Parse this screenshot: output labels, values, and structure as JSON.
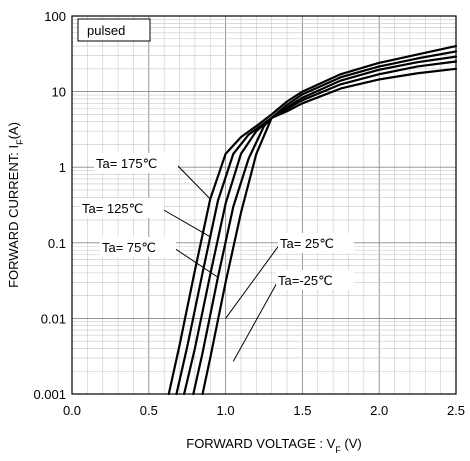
{
  "chart_data": {
    "type": "line",
    "xlabel_main": "FORWARD VOLTAGE : V",
    "xlabel_sub": "F",
    "xlabel_unit": " (V)",
    "ylabel_main": "FORWARD CURRENT: I",
    "ylabel_sub": "F",
    "ylabel_unit": "(A)",
    "note": "pulsed",
    "xlim": [
      0.0,
      2.5
    ],
    "ylim": [
      0.001,
      100
    ],
    "yscale": "log",
    "grid": "on",
    "x_tick_labels": [
      "0.0",
      "0.5",
      "1.0",
      "1.5",
      "2.0",
      "2.5"
    ],
    "x_ticks": [
      0,
      0.5,
      1.0,
      1.5,
      2.0,
      2.5
    ],
    "y_tick_labels": [
      "0.001",
      "0.01",
      "0.1",
      "1",
      "10",
      "100"
    ],
    "y_ticks": [
      0.001,
      0.01,
      0.1,
      1,
      10,
      100
    ],
    "series": [
      {
        "name": "Ta= 175℃",
        "x": [
          0.63,
          0.7,
          0.8,
          0.9,
          1.0,
          1.1,
          1.2,
          1.3,
          1.4,
          1.5,
          1.75,
          2.0,
          2.25,
          2.5
        ],
        "y": [
          0.001,
          0.0044,
          0.043,
          0.38,
          1.5,
          2.5,
          3.5,
          5.0,
          7.4,
          10.0,
          17.0,
          24.0,
          31.0,
          40.0
        ]
      },
      {
        "name": "Ta= 125℃",
        "x": [
          0.68,
          0.75,
          0.85,
          0.95,
          1.05,
          1.15,
          1.3,
          1.4,
          1.5,
          1.75,
          2.0,
          2.25,
          2.5
        ],
        "y": [
          0.001,
          0.0042,
          0.04,
          0.36,
          1.5,
          2.7,
          4.5,
          6.7,
          9.2,
          15.5,
          21.5,
          27.5,
          34.0
        ]
      },
      {
        "name": "Ta= 75℃",
        "x": [
          0.73,
          0.8,
          0.9,
          1.0,
          1.1,
          1.2,
          1.3,
          1.4,
          1.5,
          1.75,
          2.0,
          2.25,
          2.5
        ],
        "y": [
          0.001,
          0.004,
          0.038,
          0.33,
          1.5,
          3.0,
          4.5,
          6.2,
          8.3,
          14.0,
          19.5,
          24.5,
          29.0
        ]
      },
      {
        "name": "Ta= 25℃",
        "x": [
          0.79,
          0.85,
          0.95,
          1.05,
          1.15,
          1.25,
          1.3,
          1.4,
          1.5,
          1.75,
          2.0,
          2.25,
          2.5
        ],
        "y": [
          0.001,
          0.0035,
          0.035,
          0.3,
          1.3,
          3.5,
          4.5,
          5.9,
          7.7,
          12.5,
          17.0,
          21.5,
          25.0
        ]
      },
      {
        "name": "Ta=-25℃",
        "x": [
          0.85,
          0.9,
          1.0,
          1.1,
          1.2,
          1.3,
          1.4,
          1.5,
          1.75,
          2.0,
          2.25,
          2.5
        ],
        "y": [
          0.001,
          0.003,
          0.03,
          0.25,
          1.5,
          4.5,
          5.5,
          7.0,
          11.0,
          14.5,
          17.5,
          20.0
        ]
      }
    ],
    "annotations": [
      {
        "text": "Ta= 175℃",
        "arrow_to": [
          0.9,
          0.38
        ]
      },
      {
        "text": "Ta= 125℃",
        "arrow_to": [
          0.9,
          0.12
        ]
      },
      {
        "text": "Ta= 75℃",
        "arrow_to": [
          0.95,
          0.035
        ]
      },
      {
        "text": "Ta= 25℃",
        "arrow_to": [
          1.0,
          0.01
        ]
      },
      {
        "text": "Ta=-25℃",
        "arrow_to": [
          1.05,
          0.0027
        ]
      }
    ]
  }
}
